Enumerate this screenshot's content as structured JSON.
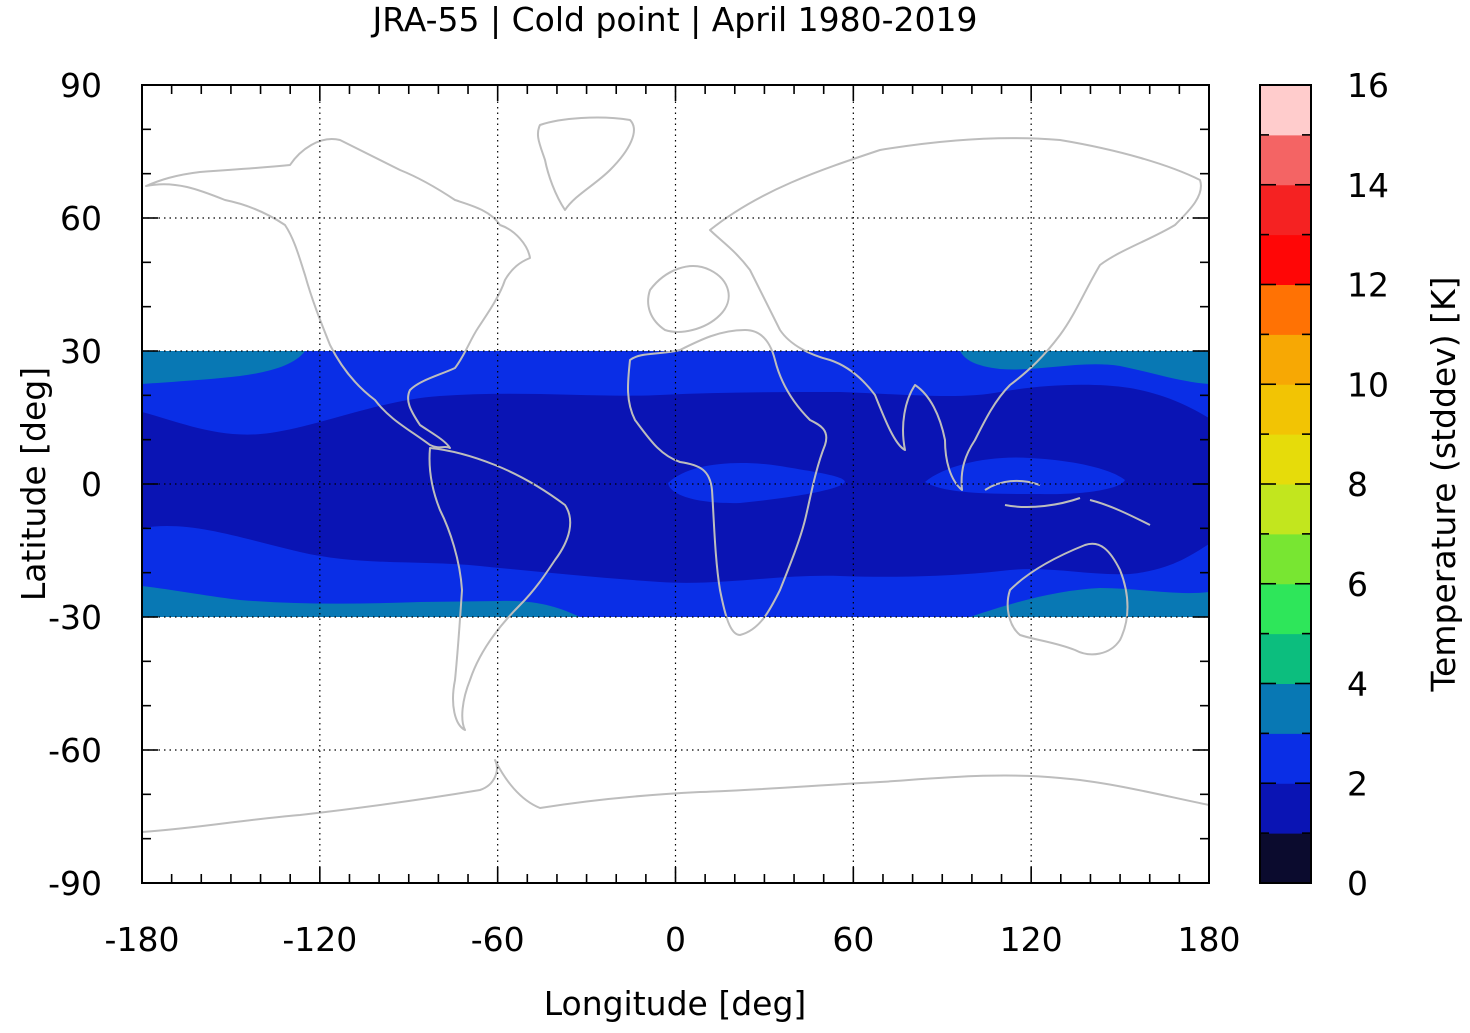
{
  "chart_data": {
    "type": "heatmap",
    "title": "JRA-55 | Cold point | April 1980-2019",
    "xlabel": "Longitude [deg]",
    "ylabel": "Latitude [deg]",
    "colorbar_label": "Temperature (stddev) [K]",
    "xlim": [
      -180,
      180
    ],
    "ylim": [
      -90,
      90
    ],
    "x_ticks": [
      -180,
      -120,
      -60,
      0,
      60,
      120,
      180
    ],
    "y_ticks": [
      90,
      60,
      30,
      0,
      -30,
      -60,
      -90
    ],
    "x_tick_labels": [
      "-180",
      "-120",
      "-60",
      "0",
      "60",
      "120",
      "180"
    ],
    "y_tick_labels": [
      "90",
      "60",
      "30",
      "0",
      "-30",
      "-60",
      "-90"
    ],
    "data_lat_range": [
      -30,
      30
    ],
    "colorbar": {
      "range": [
        0,
        16
      ],
      "ticks": [
        0,
        2,
        4,
        6,
        8,
        10,
        12,
        14,
        16
      ],
      "tick_labels": [
        "0",
        "2",
        "4",
        "6",
        "8",
        "10",
        "12",
        "14",
        "16"
      ],
      "colors": [
        "#0b0b2e",
        "#0a14b4",
        "#0a2ee6",
        "#0878b4",
        "#0cbe7e",
        "#2ee65a",
        "#78e632",
        "#c2e61e",
        "#e6dc0a",
        "#f2c404",
        "#f7a804",
        "#ff7204",
        "#ff0606",
        "#f52222",
        "#f46464",
        "#ffcccc"
      ]
    },
    "grid": true,
    "coastlines": true
  }
}
